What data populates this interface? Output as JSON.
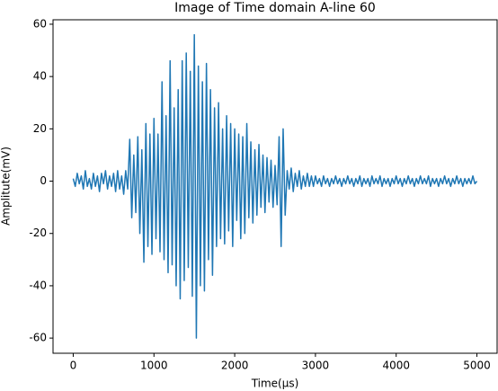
{
  "chart_data": {
    "type": "line",
    "title": "Image of Time domain A-line 60",
    "xlabel": "Time(μs)",
    "ylabel": "Amplitute(mV)",
    "color": "#1f77b4",
    "xlim": [
      -250,
      5250
    ],
    "ylim": [
      -65.8,
      61.7
    ],
    "xticks": [
      0,
      1000,
      2000,
      3000,
      4000,
      5000
    ],
    "yticks": [
      -60,
      -40,
      -20,
      0,
      20,
      40,
      60
    ],
    "x": [
      0,
      25,
      50,
      75,
      100,
      125,
      150,
      175,
      200,
      225,
      250,
      275,
      300,
      325,
      350,
      375,
      400,
      425,
      450,
      475,
      500,
      525,
      550,
      575,
      600,
      625,
      650,
      675,
      700,
      725,
      750,
      775,
      800,
      825,
      850,
      875,
      900,
      925,
      950,
      975,
      1000,
      1025,
      1050,
      1075,
      1100,
      1125,
      1150,
      1175,
      1200,
      1225,
      1250,
      1275,
      1300,
      1325,
      1350,
      1375,
      1400,
      1425,
      1450,
      1475,
      1500,
      1525,
      1550,
      1575,
      1600,
      1625,
      1650,
      1675,
      1700,
      1725,
      1750,
      1775,
      1800,
      1825,
      1850,
      1875,
      1900,
      1925,
      1950,
      1975,
      2000,
      2025,
      2050,
      2075,
      2100,
      2125,
      2150,
      2175,
      2200,
      2225,
      2250,
      2275,
      2300,
      2325,
      2350,
      2375,
      2400,
      2425,
      2450,
      2475,
      2500,
      2525,
      2550,
      2575,
      2600,
      2625,
      2650,
      2675,
      2700,
      2725,
      2750,
      2775,
      2800,
      2825,
      2850,
      2875,
      2900,
      2925,
      2950,
      2975,
      3000,
      3025,
      3050,
      3075,
      3100,
      3125,
      3150,
      3175,
      3200,
      3225,
      3250,
      3275,
      3300,
      3325,
      3350,
      3375,
      3400,
      3425,
      3450,
      3475,
      3500,
      3525,
      3550,
      3575,
      3600,
      3625,
      3650,
      3675,
      3700,
      3725,
      3750,
      3775,
      3800,
      3825,
      3850,
      3875,
      3900,
      3925,
      3950,
      3975,
      4000,
      4025,
      4050,
      4075,
      4100,
      4125,
      4150,
      4175,
      4200,
      4225,
      4250,
      4275,
      4300,
      4325,
      4350,
      4375,
      4400,
      4425,
      4450,
      4475,
      4500,
      4525,
      4550,
      4575,
      4600,
      4625,
      4650,
      4675,
      4700,
      4725,
      4750,
      4775,
      4800,
      4825,
      4850,
      4875,
      4900,
      4925,
      4950,
      4975,
      5000
    ],
    "values": [
      1,
      -2,
      3,
      -1,
      2,
      -3,
      4,
      -2,
      1,
      -3,
      3,
      -2,
      2,
      -4,
      3,
      -1,
      4,
      -3,
      2,
      -2,
      3,
      -4,
      4,
      -3,
      2,
      -5,
      4,
      -3,
      16,
      -14,
      10,
      -12,
      17,
      -20,
      12,
      -31,
      22,
      -25,
      18,
      -28,
      24,
      -22,
      18,
      -27,
      38,
      -30,
      25,
      -35,
      46,
      -32,
      28,
      -40,
      35,
      -45,
      46,
      -38,
      49,
      -33,
      42,
      -44,
      56,
      -60,
      44,
      -40,
      38,
      -42,
      45,
      -30,
      35,
      -36,
      28,
      -25,
      30,
      -22,
      20,
      -24,
      25,
      -19,
      22,
      -25,
      20,
      -15,
      18,
      -22,
      17,
      -20,
      22,
      -14,
      15,
      -16,
      12,
      -13,
      14,
      -10,
      10,
      -12,
      9,
      -8,
      8,
      -10,
      6,
      -9,
      17,
      -25,
      20,
      -13,
      4,
      -3,
      5,
      -4,
      3,
      -2,
      4,
      -3,
      2,
      -2,
      3,
      -2,
      2,
      -2,
      2,
      -1,
      1,
      -2,
      2,
      -1,
      1,
      -2,
      1,
      -1,
      2,
      -1,
      1,
      -2,
      1,
      -1,
      2,
      -1,
      1,
      -2,
      1,
      -1,
      2,
      -2,
      1,
      -1,
      1,
      -2,
      2,
      -1,
      1,
      -1,
      2,
      -2,
      1,
      -1,
      1,
      -2,
      1,
      -1,
      2,
      -1,
      1,
      -2,
      1,
      -1,
      2,
      -1,
      1,
      -2,
      1,
      -1,
      2,
      -1,
      1,
      -1,
      2,
      -2,
      1,
      -1,
      1,
      -2,
      1,
      -1,
      2,
      -1,
      1,
      -2,
      1,
      -1,
      2,
      -1,
      1,
      -2,
      1,
      -1,
      1,
      -1,
      2,
      -1,
      0
    ]
  }
}
